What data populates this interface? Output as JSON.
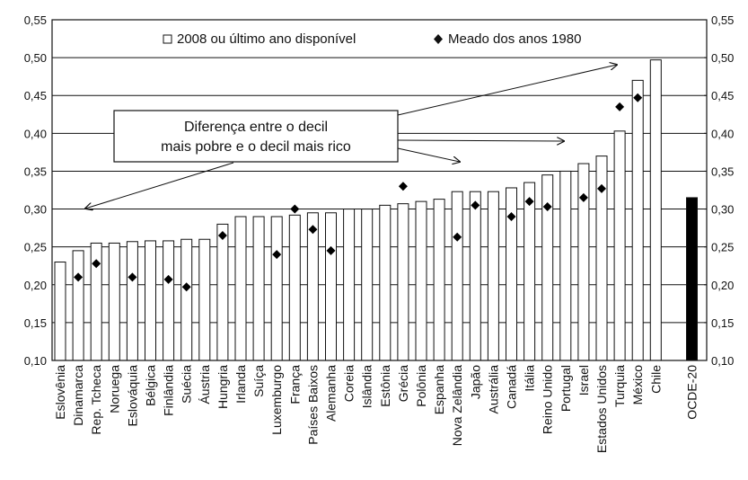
{
  "chart_data": {
    "type": "bar",
    "categories": [
      "Eslovênia",
      "Dinamarca",
      "Rep. Tcheca",
      "Noruega",
      "Eslováquia",
      "Bélgica",
      "Finlândia",
      "Suécia",
      "Áustria",
      "Hungria",
      "Irlanda",
      "Suíça",
      "Luxemburgo",
      "França",
      "Países Baixos",
      "Alemanha",
      "Coreia",
      "Islândia",
      "Estônia",
      "Grécia",
      "Polônia",
      "Espanha",
      "Nova Zelândia",
      "Japão",
      "Austrália",
      "Canadá",
      "Itália",
      "Reino Unido",
      "Portugal",
      "Israel",
      "Estados Unidos",
      "Turquia",
      "México",
      "Chile",
      null,
      "OCDE-20"
    ],
    "series": [
      {
        "name": "2008 ou último ano disponível",
        "color": "#ffffff",
        "highlight_color": "#000000",
        "values": [
          0.23,
          0.245,
          0.255,
          0.255,
          0.257,
          0.258,
          0.258,
          0.26,
          0.26,
          0.28,
          0.29,
          0.29,
          0.29,
          0.292,
          0.295,
          0.295,
          0.3,
          0.3,
          0.305,
          0.307,
          0.31,
          0.313,
          0.323,
          0.323,
          0.323,
          0.328,
          0.335,
          0.345,
          0.35,
          0.36,
          0.37,
          0.403,
          0.47,
          0.497,
          null,
          0.315
        ]
      },
      {
        "name": "Meado dos anos 1980",
        "color": "#000000",
        "marker": "diamond",
        "values": [
          null,
          0.21,
          0.228,
          null,
          0.21,
          null,
          0.207,
          0.197,
          null,
          0.265,
          null,
          null,
          0.24,
          0.3,
          0.273,
          0.245,
          null,
          null,
          null,
          0.33,
          null,
          null,
          0.263,
          0.305,
          null,
          0.29,
          0.31,
          0.303,
          null,
          0.315,
          0.327,
          0.435,
          0.447,
          null,
          null,
          null
        ]
      }
    ],
    "annotation": [
      "Diferença entre o decil",
      "mais pobre e o decil mais rico"
    ],
    "ylim": [
      0.1,
      0.55
    ],
    "yticks": [
      {
        "value": 0.1,
        "label": "0,10"
      },
      {
        "value": 0.15,
        "label": "0,15"
      },
      {
        "value": 0.2,
        "label": "0,20"
      },
      {
        "value": 0.25,
        "label": "0,25"
      },
      {
        "value": 0.3,
        "label": "0,30"
      },
      {
        "value": 0.35,
        "label": "0,35"
      },
      {
        "value": 0.4,
        "label": "0,40"
      },
      {
        "value": 0.45,
        "label": "0,45"
      },
      {
        "value": 0.5,
        "label": "0,50"
      },
      {
        "value": 0.55,
        "label": "0,55"
      }
    ],
    "y2lim": [
      0.1,
      0.55
    ],
    "y2ticks": [
      {
        "value": 0.1,
        "label": "0,10"
      },
      {
        "value": 0.15,
        "label": "0,15"
      },
      {
        "value": 0.2,
        "label": "0,20"
      },
      {
        "value": 0.25,
        "label": "0,25"
      },
      {
        "value": 0.3,
        "label": "0,30"
      },
      {
        "value": 0.35,
        "label": "0,35"
      },
      {
        "value": 0.4,
        "label": "0,40"
      },
      {
        "value": 0.45,
        "label": "0,45"
      },
      {
        "value": 0.5,
        "label": "0,50"
      },
      {
        "value": 0.55,
        "label": "0,55"
      }
    ],
    "grid": true
  }
}
